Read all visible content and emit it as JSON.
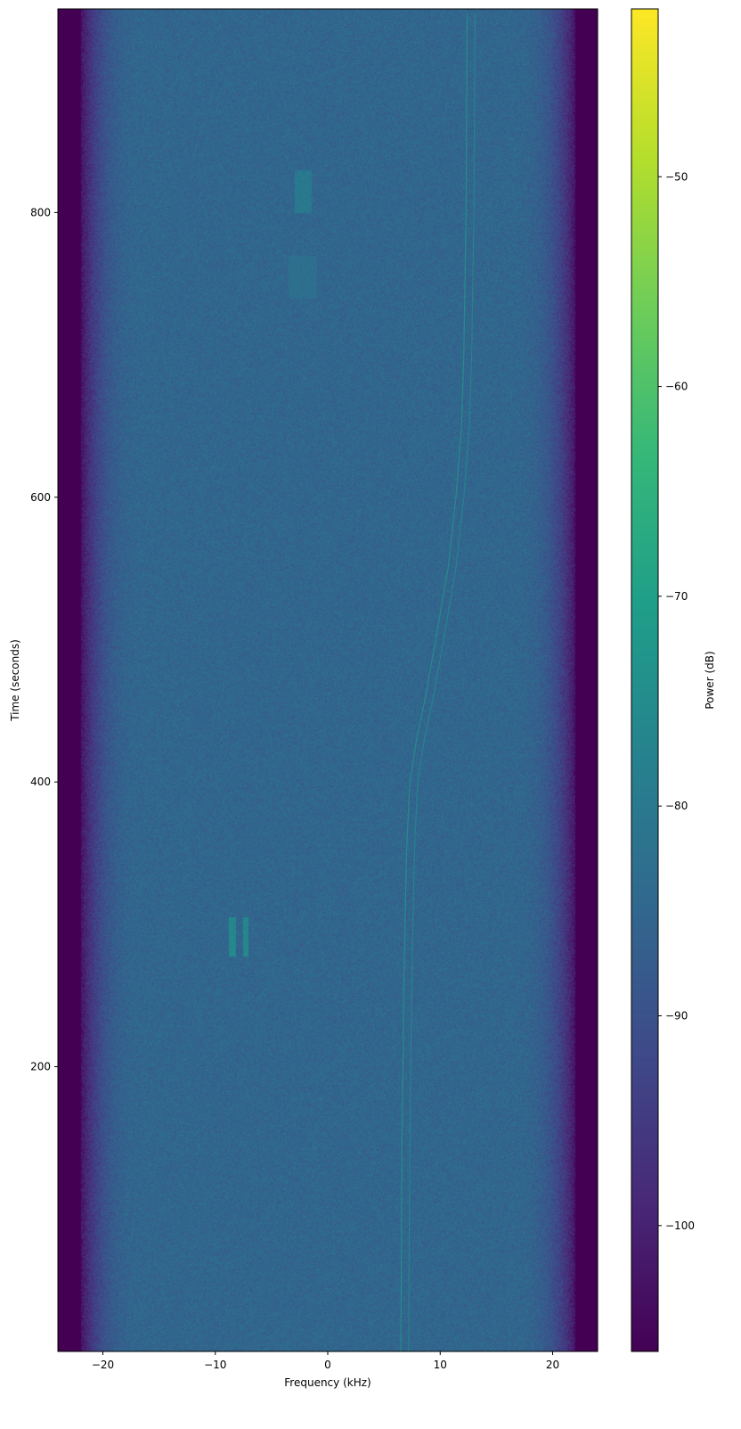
{
  "chart_data": {
    "type": "heatmap",
    "title": "",
    "xlabel": "Frequency (kHz)",
    "ylabel": "Time (seconds)",
    "xlim": [
      -24,
      24
    ],
    "ylim": [
      0,
      943
    ],
    "xticks": [
      -20,
      -10,
      0,
      10,
      20
    ],
    "xtick_labels": [
      "−20",
      "−10",
      "0",
      "10",
      "20"
    ],
    "yticks": [
      200,
      400,
      600,
      800
    ],
    "ytick_labels": [
      "200",
      "400",
      "600",
      "800"
    ],
    "grid": false,
    "colormap": "viridis",
    "colorbar": {
      "label": "Power (dB)",
      "range": [
        -106,
        -42
      ],
      "ticks": [
        -50,
        -60,
        -70,
        -80,
        -90,
        -100
      ],
      "tick_labels": [
        "−50",
        "−60",
        "−70",
        "−80",
        "−90",
        "−100"
      ]
    },
    "noise_floor_db": -85,
    "band_edge_rolloff_khz": [
      -22,
      22
    ],
    "out_of_band_db": -106,
    "carrier_traces": [
      {
        "offset_khz": 0,
        "level_db": -72,
        "points": [
          [
            0,
            6.5
          ],
          [
            150,
            6.6
          ],
          [
            270,
            6.8
          ],
          [
            350,
            7.0
          ],
          [
            400,
            7.3
          ],
          [
            430,
            7.9
          ],
          [
            460,
            8.7
          ],
          [
            500,
            9.6
          ],
          [
            550,
            10.7
          ],
          [
            600,
            11.4
          ],
          [
            650,
            11.9
          ],
          [
            700,
            12.1
          ],
          [
            800,
            12.3
          ],
          [
            943,
            12.4
          ]
        ]
      },
      {
        "offset_khz": 0.7,
        "level_db": -75,
        "points": [
          [
            0,
            6.5
          ],
          [
            150,
            6.6
          ],
          [
            270,
            6.8
          ],
          [
            350,
            7.0
          ],
          [
            400,
            7.3
          ],
          [
            430,
            7.9
          ],
          [
            460,
            8.7
          ],
          [
            500,
            9.6
          ],
          [
            550,
            10.7
          ],
          [
            600,
            11.4
          ],
          [
            650,
            11.9
          ],
          [
            700,
            12.1
          ],
          [
            800,
            12.3
          ],
          [
            943,
            12.4
          ]
        ]
      }
    ],
    "bursts": [
      {
        "freq_khz": [
          -8.8,
          -8.2
        ],
        "time_s": [
          278,
          305
        ],
        "level_db": -76
      },
      {
        "freq_khz": [
          -7.6,
          -7.1
        ],
        "time_s": [
          278,
          305
        ],
        "level_db": -76
      },
      {
        "freq_khz": [
          -3.0,
          -1.5
        ],
        "time_s": [
          800,
          830
        ],
        "level_db": -80
      },
      {
        "freq_khz": [
          -3.5,
          -1.0
        ],
        "time_s": [
          740,
          770
        ],
        "level_db": -83
      }
    ]
  }
}
